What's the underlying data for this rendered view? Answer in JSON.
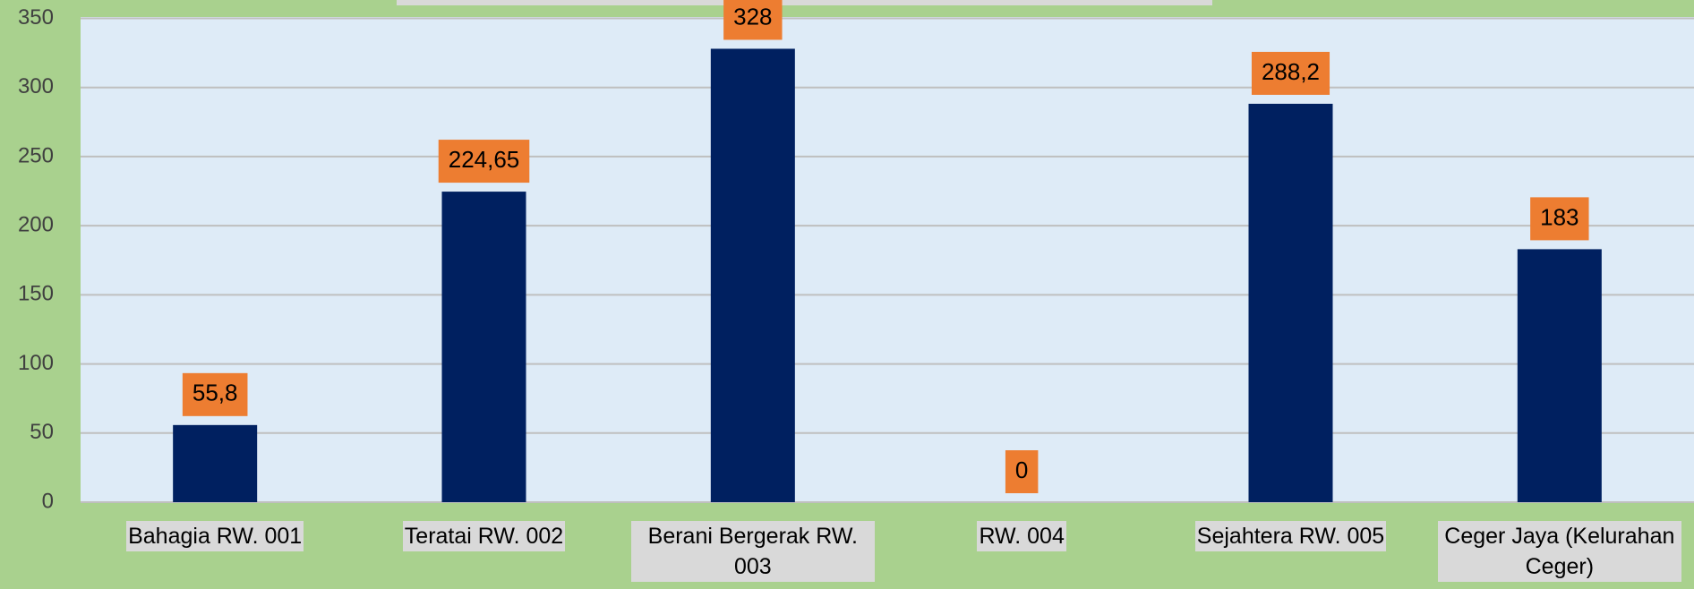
{
  "chart_data": {
    "type": "bar",
    "categories": [
      "Bahagia RW. 001",
      "Teratai RW. 002",
      "Berani Bergerak RW. 003",
      "RW. 004",
      "Sejahtera RW. 005",
      "Ceger Jaya (Kelurahan Ceger)"
    ],
    "values": [
      55.8,
      224.65,
      328,
      0,
      288.2,
      183
    ],
    "value_labels": [
      "55,8",
      "224,65",
      "328",
      "0",
      "288,2",
      "183"
    ],
    "color": "#002060",
    "ylim": [
      0,
      350
    ],
    "yticks": [
      0,
      50,
      100,
      150,
      200,
      250,
      300,
      350
    ],
    "grid": true
  }
}
